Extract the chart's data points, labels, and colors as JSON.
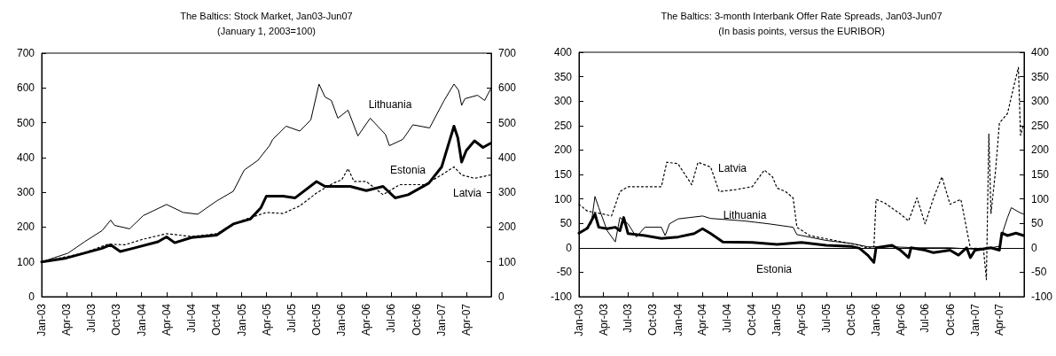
{
  "chart_data": [
    {
      "type": "line",
      "title": "The Baltics: Stock Market, Jan03-Jun07",
      "subtitle": "(January 1, 2003=100)",
      "xlim": [
        "2003-01-01",
        "2007-07-01"
      ],
      "xticks": [
        {
          "value": "2003-01-01",
          "label": "Jan-03"
        },
        {
          "value": "2003-04-01",
          "label": "Apr-03"
        },
        {
          "value": "2003-07-01",
          "label": "Jul-03"
        },
        {
          "value": "2003-10-01",
          "label": "Oct-03"
        },
        {
          "value": "2004-01-01",
          "label": "Jan-04"
        },
        {
          "value": "2004-04-01",
          "label": "Apr-04"
        },
        {
          "value": "2004-07-01",
          "label": "Jul-04"
        },
        {
          "value": "2004-10-01",
          "label": "Oct-04"
        },
        {
          "value": "2005-01-01",
          "label": "Jan-05"
        },
        {
          "value": "2005-04-01",
          "label": "Apr-05"
        },
        {
          "value": "2005-07-01",
          "label": "Jul-05"
        },
        {
          "value": "2005-10-01",
          "label": "Oct-05"
        },
        {
          "value": "2006-01-01",
          "label": "Jan-06"
        },
        {
          "value": "2006-04-01",
          "label": "Apr-06"
        },
        {
          "value": "2006-07-01",
          "label": "Jul-06"
        },
        {
          "value": "2006-10-01",
          "label": "Oct-06"
        },
        {
          "value": "2007-01-01",
          "label": "Jan-07"
        },
        {
          "value": "2007-04-01",
          "label": "Apr-07"
        }
      ],
      "ylim": [
        0,
        700
      ],
      "yticks": [
        0,
        100,
        200,
        300,
        400,
        500,
        600,
        700
      ],
      "y2lim": [
        0,
        700
      ],
      "y2ticks": [
        0,
        100,
        200,
        300,
        400,
        500,
        600,
        700
      ],
      "grid": false,
      "legend": false,
      "marker": "none",
      "series": [
        {
          "name": "Lithuania",
          "color": "#000000",
          "line_style": "solid",
          "x": [
            "2003-01-01",
            "2003-04-07",
            "2003-06-07",
            "2003-08-10",
            "2003-09-10",
            "2003-09-24",
            "2003-11-18",
            "2004-01-07",
            "2004-04-01",
            "2004-06-01",
            "2004-07-24",
            "2004-10-01",
            "2004-12-01",
            "2005-01-10",
            "2005-03-01",
            "2005-04-12",
            "2005-04-24",
            "2005-06-12",
            "2005-08-01",
            "2005-09-10",
            "2005-10-10",
            "2005-11-01",
            "2005-11-24",
            "2005-12-18",
            "2006-01-24",
            "2006-03-01",
            "2006-04-15",
            "2006-06-10",
            "2006-06-24",
            "2006-08-12",
            "2006-09-18",
            "2006-11-18",
            "2007-01-10",
            "2007-02-15",
            "2007-03-04",
            "2007-03-15",
            "2007-03-27",
            "2007-05-12",
            "2007-06-07",
            "2007-06-29"
          ],
          "values": [
            100,
            125,
            158,
            190,
            220,
            205,
            195,
            233,
            265,
            242,
            237,
            275,
            303,
            364,
            392,
            434,
            452,
            490,
            476,
            508,
            611,
            574,
            564,
            513,
            536,
            462,
            513,
            466,
            434,
            452,
            494,
            485,
            564,
            611,
            593,
            550,
            569,
            579,
            564,
            597
          ]
        },
        {
          "name": "Estonia",
          "color": "#000000",
          "line_style": "solid",
          "x": [
            "2003-01-01",
            "2003-04-01",
            "2003-08-10",
            "2003-09-10",
            "2003-10-15",
            "2003-12-01",
            "2004-03-01",
            "2004-04-01",
            "2004-05-01",
            "2004-07-01",
            "2004-10-01",
            "2004-12-01",
            "2005-02-01",
            "2005-03-12",
            "2005-04-01",
            "2005-06-01",
            "2005-07-15",
            "2005-10-01",
            "2005-11-01",
            "2006-02-01",
            "2006-04-01",
            "2006-06-01",
            "2006-07-15",
            "2006-09-01",
            "2006-11-15",
            "2007-01-01",
            "2007-02-15",
            "2007-03-01",
            "2007-03-15",
            "2007-04-01",
            "2007-05-01",
            "2007-06-01",
            "2007-06-29"
          ],
          "values": [
            100,
            111,
            139,
            149,
            130,
            139,
            158,
            172,
            155,
            170,
            177,
            209,
            223,
            256,
            289,
            289,
            284,
            331,
            317,
            317,
            305,
            317,
            284,
            293,
            326,
            373,
            490,
            457,
            387,
            420,
            448,
            429,
            441
          ]
        },
        {
          "name": "Latvia",
          "color": "#000000",
          "line_style": "dotted",
          "x": [
            "2003-01-01",
            "2003-06-01",
            "2003-09-01",
            "2003-11-01",
            "2004-01-01",
            "2004-04-01",
            "2004-07-01",
            "2004-10-01",
            "2005-01-01",
            "2005-04-01",
            "2005-06-01",
            "2005-08-01",
            "2005-10-01",
            "2005-12-01",
            "2006-01-01",
            "2006-01-24",
            "2006-02-15",
            "2006-04-01",
            "2006-06-01",
            "2006-08-01",
            "2006-11-01",
            "2007-01-01",
            "2007-02-15",
            "2007-03-15",
            "2007-05-01",
            "2007-06-29"
          ],
          "values": [
            100,
            125,
            151,
            149,
            164,
            181,
            173,
            181,
            219,
            242,
            239,
            261,
            298,
            326,
            336,
            368,
            331,
            331,
            293,
            322,
            322,
            350,
            373,
            350,
            340,
            350
          ]
        }
      ]
    },
    {
      "type": "line",
      "title": "The Baltics: 3-month Interbank Offer Rate Spreads, Jan03-Jun07",
      "subtitle": "(In basis points, versus the EURIBOR)",
      "xlim": [
        "2003-01-01",
        "2007-07-01"
      ],
      "xticks": [
        {
          "value": "2003-01-01",
          "label": "Jan-03"
        },
        {
          "value": "2003-04-01",
          "label": "Apr-03"
        },
        {
          "value": "2003-07-01",
          "label": "Jul-03"
        },
        {
          "value": "2003-10-01",
          "label": "Oct-03"
        },
        {
          "value": "2004-01-01",
          "label": "Jan-04"
        },
        {
          "value": "2004-04-01",
          "label": "Apr-04"
        },
        {
          "value": "2004-07-01",
          "label": "Jul-04"
        },
        {
          "value": "2004-10-01",
          "label": "Oct-04"
        },
        {
          "value": "2005-01-01",
          "label": "Jan-05"
        },
        {
          "value": "2005-04-01",
          "label": "Apr-05"
        },
        {
          "value": "2005-07-01",
          "label": "Jul-05"
        },
        {
          "value": "2005-10-01",
          "label": "Oct-05"
        },
        {
          "value": "2006-01-01",
          "label": "Jan-06"
        },
        {
          "value": "2006-04-01",
          "label": "Apr-06"
        },
        {
          "value": "2006-07-01",
          "label": "Jul-06"
        },
        {
          "value": "2006-10-01",
          "label": "Oct-06"
        },
        {
          "value": "2007-01-01",
          "label": "Jan-07"
        },
        {
          "value": "2007-04-01",
          "label": "Apr-07"
        }
      ],
      "ylim": [
        -100,
        400
      ],
      "yticks": [
        -100,
        -50,
        0,
        50,
        100,
        150,
        200,
        250,
        300,
        350,
        400
      ],
      "y2lim": [
        -100,
        400
      ],
      "y2ticks": [
        -100,
        -50,
        0,
        50,
        100,
        150,
        200,
        250,
        300,
        350,
        400
      ],
      "grid": false,
      "legend": false,
      "marker": "none",
      "ref_lines": [
        {
          "axis": "y",
          "value": 0,
          "color": "#000000"
        }
      ],
      "series": [
        {
          "name": "Latvia",
          "color": "#000000",
          "line_style": "dotted",
          "x": [
            "2003-01-01",
            "2003-02-01",
            "2003-04-01",
            "2003-05-01",
            "2003-06-01",
            "2003-07-01",
            "2003-11-01",
            "2003-11-21",
            "2004-01-01",
            "2004-02-21",
            "2004-03-15",
            "2004-05-01",
            "2004-06-01",
            "2004-08-01",
            "2004-10-01",
            "2004-11-15",
            "2004-12-15",
            "2005-01-01",
            "2005-02-01",
            "2005-03-01",
            "2005-03-15",
            "2005-05-01",
            "2005-08-01",
            "2005-11-01",
            "2005-12-01",
            "2005-12-24",
            "2006-01-01",
            "2006-02-01",
            "2006-04-01",
            "2006-05-01",
            "2006-06-01",
            "2006-07-01",
            "2006-08-01",
            "2006-09-01",
            "2006-10-01",
            "2006-11-10",
            "2006-12-15",
            "2007-02-01",
            "2007-02-12",
            "2007-02-21",
            "2007-03-01",
            "2007-03-18",
            "2007-04-01",
            "2007-05-01",
            "2007-05-24",
            "2007-06-10",
            "2007-06-18",
            "2007-06-28"
          ],
          "values": [
            89,
            75,
            69,
            65,
            115,
            125,
            125,
            175,
            172,
            129,
            175,
            165,
            115,
            119,
            125,
            159,
            145,
            122,
            115,
            102,
            42,
            25,
            15,
            5,
            -1,
            2,
            99,
            92,
            69,
            55,
            102,
            49,
            102,
            145,
            89,
            99,
            -1,
            -1,
            -65,
            233,
            70,
            159,
            255,
            275,
            330,
            369,
            230,
            249
          ]
        },
        {
          "name": "Lithuania",
          "color": "#000000",
          "line_style": "solid",
          "x": [
            "2003-01-01",
            "2003-02-15",
            "2003-03-01",
            "2003-03-15",
            "2003-04-15",
            "2003-05-15",
            "2003-06-01",
            "2003-07-01",
            "2003-08-01",
            "2003-09-01",
            "2003-11-01",
            "2003-11-15",
            "2003-12-01",
            "2004-01-01",
            "2004-04-01",
            "2004-05-01",
            "2004-09-01",
            "2004-12-01",
            "2005-03-01",
            "2005-03-15",
            "2005-07-01",
            "2005-10-01",
            "2005-12-01",
            "2006-03-01",
            "2006-06-01",
            "2006-10-01",
            "2007-01-01",
            "2007-03-01",
            "2007-04-01",
            "2007-04-15",
            "2007-05-01",
            "2007-05-15",
            "2007-06-15",
            "2007-06-29"
          ],
          "values": [
            29,
            49,
            105,
            82,
            35,
            12,
            62,
            49,
            22,
            42,
            42,
            25,
            49,
            59,
            65,
            60,
            55,
            49,
            42,
            27,
            15,
            9,
            2,
            2,
            0,
            0,
            -3,
            0,
            3,
            35,
            62,
            82,
            72,
            69
          ]
        },
        {
          "name": "Estonia",
          "color": "#000000",
          "line_style": "solid",
          "x": [
            "2003-01-01",
            "2003-02-01",
            "2003-03-01",
            "2003-03-15",
            "2003-04-15",
            "2003-05-15",
            "2003-06-01",
            "2003-06-15",
            "2003-07-01",
            "2003-09-01",
            "2003-11-01",
            "2004-01-01",
            "2004-03-01",
            "2004-04-01",
            "2004-05-01",
            "2004-06-15",
            "2004-10-01",
            "2005-01-01",
            "2005-04-01",
            "2005-07-01",
            "2005-10-01",
            "2005-11-01",
            "2005-12-01",
            "2005-12-24",
            "2006-01-01",
            "2006-03-01",
            "2006-04-01",
            "2006-05-01",
            "2006-05-10",
            "2006-07-01",
            "2006-08-01",
            "2006-10-01",
            "2006-11-01",
            "2006-12-01",
            "2006-12-15",
            "2007-01-01",
            "2007-03-01",
            "2007-04-01",
            "2007-04-10",
            "2007-05-01",
            "2007-06-01",
            "2007-06-29"
          ],
          "values": [
            30,
            40,
            69,
            42,
            39,
            42,
            35,
            62,
            29,
            25,
            19,
            22,
            29,
            39,
            29,
            12,
            11,
            7,
            11,
            5,
            3,
            -1,
            -15,
            -30,
            0,
            5,
            -5,
            -20,
            0,
            -5,
            -10,
            -5,
            -15,
            0,
            -20,
            -5,
            0,
            -5,
            30,
            25,
            30,
            25
          ]
        }
      ]
    }
  ]
}
